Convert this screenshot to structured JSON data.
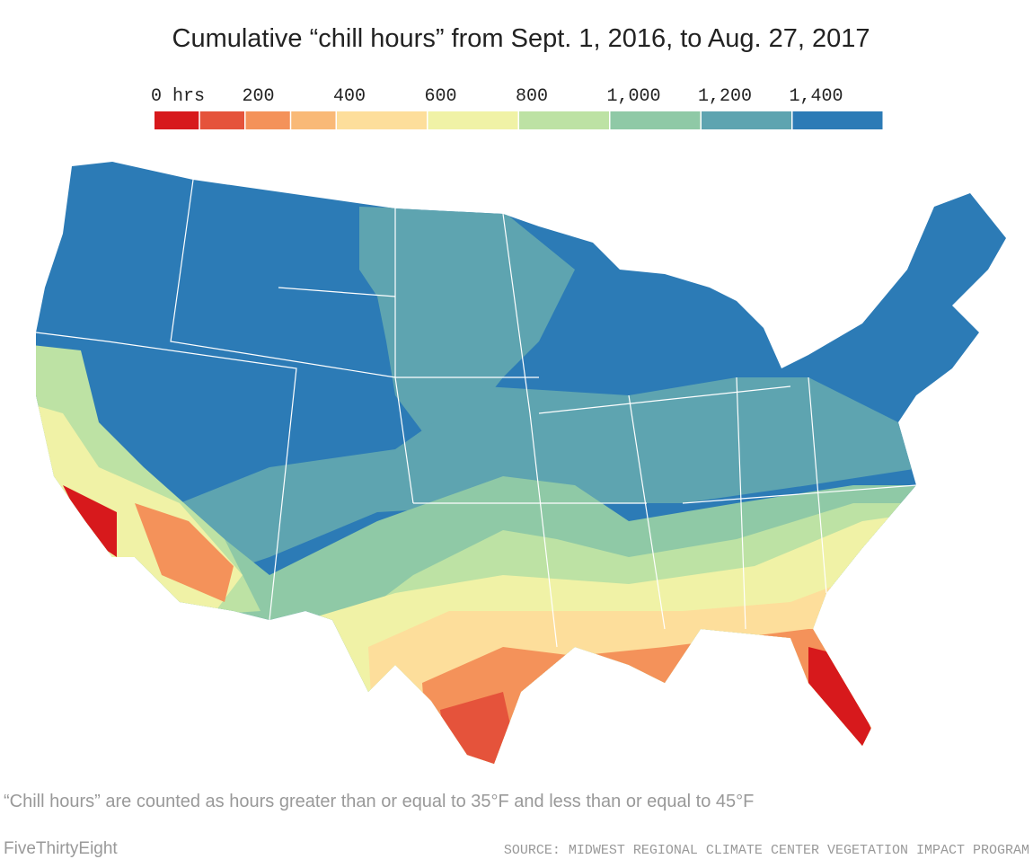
{
  "title": "Cumulative “chill hours” from Sept. 1, 2016, to Aug. 27, 2017",
  "legend": {
    "lim": [
      0,
      1600
    ],
    "bins": [
      0,
      100,
      200,
      300,
      400,
      600,
      800,
      1000,
      1200,
      1400,
      1600
    ],
    "colors": [
      "#d7191c",
      "#e5533b",
      "#f4925a",
      "#f9b977",
      "#fdde9b",
      "#f0f2a6",
      "#bde2a4",
      "#8fc9a6",
      "#5ea4b0",
      "#2c7bb6"
    ],
    "ticks": [
      {
        "value": 0,
        "label": "0 hrs"
      },
      200,
      400,
      600,
      800,
      {
        "value": 1000,
        "label": "1,000"
      },
      {
        "value": 1200,
        "label": "1,200"
      },
      {
        "value": 1400,
        "label": "1,400"
      }
    ]
  },
  "note": "“Chill hours” are counted as hours greater than or equal to 35°F and less than or equal to 45°F",
  "credit": "FiveThirtyEight",
  "source": "SOURCE: MIDWEST REGIONAL CLIMATE CENTER VEGETATION IMPACT PROGRAM"
}
